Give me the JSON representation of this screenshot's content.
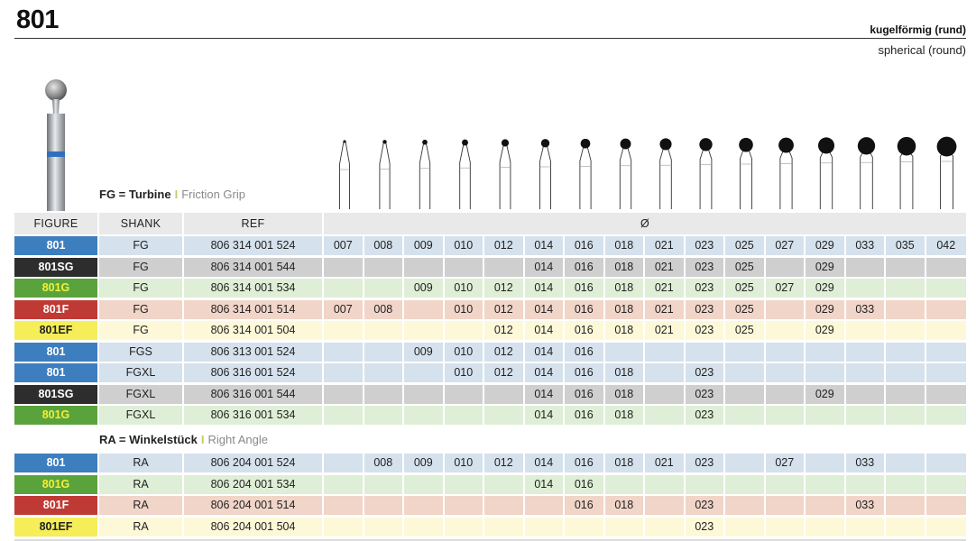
{
  "page": {
    "title": "801",
    "subtitle_de": "kugelförmig (rund)",
    "subtitle_en": "spherical (round)"
  },
  "sections": {
    "fg": {
      "bold": "FG = Turbine",
      "sep": "I",
      "alt": "Friction Grip"
    },
    "ra": {
      "bold": "RA = Winkelstück",
      "sep": "I",
      "alt": "Right Angle"
    }
  },
  "table": {
    "headers": {
      "figure": "FIGURE",
      "shank": "SHANK",
      "ref": "REF",
      "diameter": "Ø"
    },
    "sizes": [
      "007",
      "008",
      "009",
      "010",
      "012",
      "014",
      "016",
      "018",
      "021",
      "023",
      "025",
      "027",
      "029",
      "033",
      "035",
      "042"
    ],
    "styles": {
      "801": {
        "figure_bg": "#3d7ebf",
        "figure_fg": "#ffffff",
        "row_bg": "#d5e1ec"
      },
      "801SG": {
        "figure_bg": "#2d2d2d",
        "figure_fg": "#ffffff",
        "row_bg": "#cfcfcf"
      },
      "801G": {
        "figure_bg": "#5aa33c",
        "figure_fg": "#f2ef3a",
        "row_bg": "#dfeed6"
      },
      "801F": {
        "figure_bg": "#c03a35",
        "figure_fg": "#ffffff",
        "row_bg": "#f1d5c8"
      },
      "801EF": {
        "figure_bg": "#f5ee58",
        "figure_fg": "#222222",
        "row_bg": "#fdf8d8"
      }
    },
    "fg_rows": [
      {
        "figure": "801",
        "shank": "FG",
        "ref": "806 314 001 524",
        "cells": [
          "007",
          "008",
          "009",
          "010",
          "012",
          "014",
          "016",
          "018",
          "021",
          "023",
          "025",
          "027",
          "029",
          "033",
          "035",
          "042"
        ]
      },
      {
        "figure": "801SG",
        "shank": "FG",
        "ref": "806 314 001 544",
        "cells": [
          "",
          "",
          "",
          "",
          "",
          "014",
          "016",
          "018",
          "021",
          "023",
          "025",
          "",
          "029",
          "",
          "",
          ""
        ]
      },
      {
        "figure": "801G",
        "shank": "FG",
        "ref": "806 314 001 534",
        "cells": [
          "",
          "",
          "009",
          "010",
          "012",
          "014",
          "016",
          "018",
          "021",
          "023",
          "025",
          "027",
          "029",
          "",
          "",
          ""
        ]
      },
      {
        "figure": "801F",
        "shank": "FG",
        "ref": "806 314 001 514",
        "cells": [
          "007",
          "008",
          "",
          "010",
          "012",
          "014",
          "016",
          "018",
          "021",
          "023",
          "025",
          "",
          "029",
          "033",
          "",
          ""
        ]
      },
      {
        "figure": "801EF",
        "shank": "FG",
        "ref": "806 314 001 504",
        "cells": [
          "",
          "",
          "",
          "",
          "012",
          "014",
          "016",
          "018",
          "021",
          "023",
          "025",
          "",
          "029",
          "",
          "",
          ""
        ]
      },
      {
        "figure": "801",
        "shank": "FGS",
        "ref": "806 313 001 524",
        "cells": [
          "",
          "",
          "009",
          "010",
          "012",
          "014",
          "016",
          "",
          "",
          "",
          "",
          "",
          "",
          "",
          "",
          ""
        ]
      },
      {
        "figure": "801",
        "shank": "FGXL",
        "ref": "806 316 001 524",
        "cells": [
          "",
          "",
          "",
          "010",
          "012",
          "014",
          "016",
          "018",
          "",
          "023",
          "",
          "",
          "",
          "",
          "",
          ""
        ]
      },
      {
        "figure": "801SG",
        "shank": "FGXL",
        "ref": "806 316 001 544",
        "cells": [
          "",
          "",
          "",
          "",
          "",
          "014",
          "016",
          "018",
          "",
          "023",
          "",
          "",
          "029",
          "",
          "",
          ""
        ]
      },
      {
        "figure": "801G",
        "shank": "FGXL",
        "ref": "806 316 001 534",
        "cells": [
          "",
          "",
          "",
          "",
          "",
          "014",
          "016",
          "018",
          "",
          "023",
          "",
          "",
          "",
          "",
          "",
          ""
        ]
      }
    ],
    "ra_rows": [
      {
        "figure": "801",
        "shank": "RA",
        "ref": "806 204 001 524",
        "cells": [
          "",
          "008",
          "009",
          "010",
          "012",
          "014",
          "016",
          "018",
          "021",
          "023",
          "",
          "027",
          "",
          "033",
          "",
          ""
        ]
      },
      {
        "figure": "801G",
        "shank": "RA",
        "ref": "806 204 001 534",
        "cells": [
          "",
          "",
          "",
          "",
          "",
          "014",
          "016",
          "",
          "",
          "",
          "",
          "",
          "",
          "",
          "",
          ""
        ]
      },
      {
        "figure": "801F",
        "shank": "RA",
        "ref": "806 204 001 514",
        "cells": [
          "",
          "",
          "",
          "",
          "",
          "",
          "016",
          "018",
          "",
          "023",
          "",
          "",
          "",
          "033",
          "",
          ""
        ]
      },
      {
        "figure": "801EF",
        "shank": "RA",
        "ref": "806 204 001 504",
        "cells": [
          "",
          "",
          "",
          "",
          "",
          "",
          "",
          "",
          "",
          "023",
          "",
          "",
          "",
          "",
          "",
          ""
        ]
      }
    ]
  }
}
